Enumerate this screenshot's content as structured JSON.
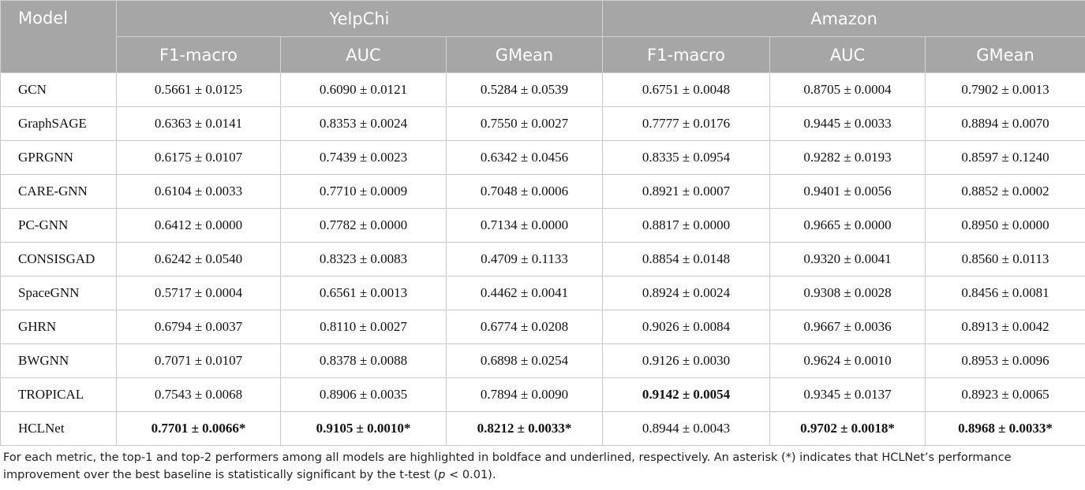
{
  "table": {
    "header": {
      "model": "Model",
      "groups": [
        "YelpChi",
        "Amazon"
      ],
      "metrics": [
        "F1-macro",
        "AUC",
        "GMean",
        "F1-macro",
        "AUC",
        "GMean"
      ]
    },
    "rows": [
      [
        "GCN",
        "0.5661 ± 0.0125",
        "0.6090 ± 0.0121",
        "0.5284 ± 0.0539",
        "0.6751 ± 0.0048",
        "0.8705 ± 0.0004",
        "0.7902 ± 0.0013"
      ],
      [
        "GraphSAGE",
        "0.6363 ± 0.0141",
        "0.8353 ± 0.0024",
        "0.7550 ± 0.0027",
        "0.7777 ± 0.0176",
        "0.9445 ± 0.0033",
        "0.8894 ± 0.0070"
      ],
      [
        "GPRGNN",
        "0.6175 ± 0.0107",
        "0.7439 ± 0.0023",
        "0.6342 ± 0.0456",
        "0.8335 ± 0.0954",
        "0.9282 ± 0.0193",
        "0.8597 ± 0.1240"
      ],
      [
        "CARE-GNN",
        "0.6104 ± 0.0033",
        "0.7710 ± 0.0009",
        "0.7048 ± 0.0006",
        "0.8921 ± 0.0007",
        "0.9401 ± 0.0056",
        "0.8852 ± 0.0002"
      ],
      [
        "PC-GNN",
        "0.6412 ± 0.0000",
        "0.7782 ± 0.0000",
        "0.7134 ± 0.0000",
        "0.8817 ± 0.0000",
        "0.9665 ± 0.0000",
        "0.8950 ± 0.0000"
      ],
      [
        "CONSISGAD",
        "0.6242 ± 0.0540",
        "0.8323 ± 0.0083",
        "0.4709 ± 0.1133",
        "0.8854 ± 0.0148",
        "0.9320 ± 0.0041",
        "0.8560 ± 0.0113"
      ],
      [
        "SpaceGNN",
        "0.5717 ± 0.0004",
        "0.6561 ± 0.0013",
        "0.4462 ± 0.0041",
        "0.8924 ± 0.0024",
        "0.9308 ± 0.0028",
        "0.8456 ± 0.0081"
      ],
      [
        "GHRN",
        "0.6794 ± 0.0037",
        "0.8110 ± 0.0027",
        "0.6774 ± 0.0208",
        "0.9026 ± 0.0084",
        "0.9667 ± 0.0036",
        "0.8913 ± 0.0042"
      ],
      [
        "BWGNN",
        "0.7071 ± 0.0107",
        "0.8378 ± 0.0088",
        "0.6898 ± 0.0254",
        "0.9126 ± 0.0030",
        "0.9624 ± 0.0010",
        "0.8953 ± 0.0096"
      ],
      [
        "TROPICAL",
        "0.7543 ± 0.0068",
        "0.8906 ± 0.0035",
        "0.7894 ± 0.0090",
        {
          "text": "0.9142 ± 0.0054",
          "bold": true
        },
        "0.9345 ± 0.0137",
        "0.8923 ± 0.0065"
      ],
      [
        "HCLNet",
        {
          "text": "0.7701 ± 0.0066*",
          "bold": true
        },
        {
          "text": "0.9105 ± 0.0010*",
          "bold": true
        },
        {
          "text": "0.8212 ± 0.0033*",
          "bold": true
        },
        "0.8944 ± 0.0043",
        {
          "text": "0.9702 ± 0.0018*",
          "bold": true
        },
        {
          "text": "0.8968 ± 0.0033*",
          "bold": true
        }
      ]
    ]
  },
  "footnote": [
    "For each metric, the top-1 and top-2 performers among all models are highlighted in boldface and underlined, respectively. An asterisk (*) indicates that HCLNet’s performance improvement over the best baseline is statistically significant by the t-test (",
    "p",
    " < 0.01)."
  ]
}
